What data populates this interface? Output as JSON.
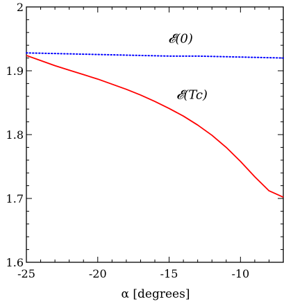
{
  "chart_data": {
    "type": "line",
    "xlabel": "α [degrees]",
    "ylabel": "",
    "xlim": [
      -25,
      -7
    ],
    "ylim": [
      1.6,
      2.0
    ],
    "xticks": [
      -25,
      -20,
      -15,
      -10
    ],
    "xtick_labels": [
      "-25",
      "-20",
      "-15",
      "-10"
    ],
    "yticks": [
      1.6,
      1.7,
      1.8,
      1.9,
      2.0
    ],
    "ytick_labels": [
      "1.6",
      "1.7",
      "1.8",
      "1.9",
      "2"
    ],
    "grid": false,
    "series": [
      {
        "name": "𝓔(0)",
        "color": "#0000ff",
        "style": "dotted",
        "x": [
          -25,
          -23,
          -21,
          -19,
          -17,
          -15,
          -13,
          -11,
          -9,
          -7
        ],
        "y": [
          1.928,
          1.927,
          1.926,
          1.925,
          1.924,
          1.923,
          1.923,
          1.922,
          1.921,
          1.92
        ]
      },
      {
        "name": "𝓔(T_C)",
        "color": "#ff0000",
        "style": "solid",
        "x": [
          -25,
          -24,
          -23,
          -22,
          -21,
          -20,
          -19,
          -18,
          -17,
          -16,
          -15,
          -14,
          -13,
          -12,
          -11,
          -10,
          -9,
          -8,
          -7
        ],
        "y": [
          1.924,
          1.916,
          1.908,
          1.901,
          1.894,
          1.887,
          1.879,
          1.871,
          1.862,
          1.852,
          1.841,
          1.829,
          1.815,
          1.799,
          1.78,
          1.758,
          1.734,
          1.712,
          1.702
        ]
      }
    ],
    "annotations": [
      {
        "id": "label-e0",
        "text": "𝓔(0)",
        "x": -14.2,
        "y": 1.944
      },
      {
        "id": "label-etc",
        "text": "𝓔(Tc)",
        "x": -13.4,
        "y": 1.856
      }
    ]
  }
}
